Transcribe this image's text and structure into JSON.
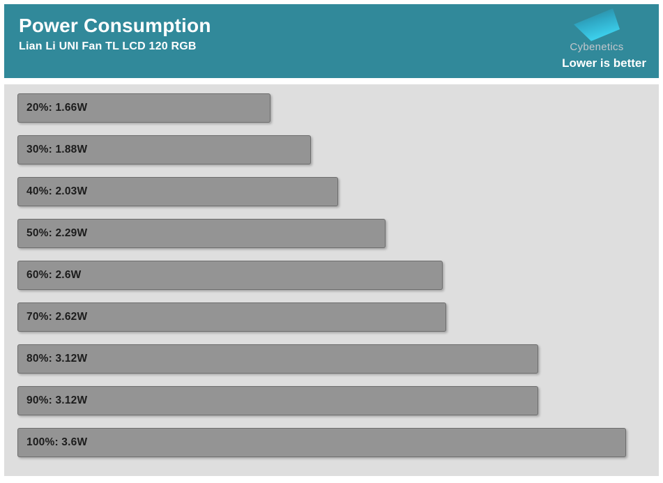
{
  "header": {
    "title": "Power Consumption",
    "subtitle": "Lian Li UNI Fan TL LCD 120 RGB",
    "brand_name": "Cybenetics",
    "note": "Lower is better"
  },
  "colors": {
    "header_background": "#31899a",
    "plot_background": "#dedede",
    "bar_fill": "#949494",
    "bar_border": "#6d6d6d",
    "bar_label_text": "#1c1c1c",
    "brand_text": "#c3c7cc",
    "logo_gradient_top": "#2b7e92",
    "logo_gradient_bottom": "#3fd7f3"
  },
  "chart_data": {
    "type": "bar",
    "orientation": "horizontal",
    "title": "Power Consumption",
    "subtitle": "Lian Li UNI Fan TL LCD 120 RGB",
    "annotation": "Lower is better",
    "unit": "W",
    "categories": [
      "20%",
      "30%",
      "40%",
      "50%",
      "60%",
      "70%",
      "80%",
      "90%",
      "100%"
    ],
    "values": [
      1.66,
      1.88,
      2.03,
      2.29,
      2.6,
      2.62,
      3.12,
      3.12,
      3.6
    ],
    "bar_labels": [
      "20%: 1.66W",
      "30%: 1.88W",
      "40%: 2.03W",
      "50%: 2.29W",
      "60%: 2.6W",
      "70%: 2.62W",
      "80%: 3.12W",
      "90%: 3.12W",
      "100%: 3.6W"
    ],
    "xlim": [
      0.28,
      3.78
    ],
    "grid": false,
    "legend": false,
    "xlabel": "",
    "ylabel": ""
  }
}
